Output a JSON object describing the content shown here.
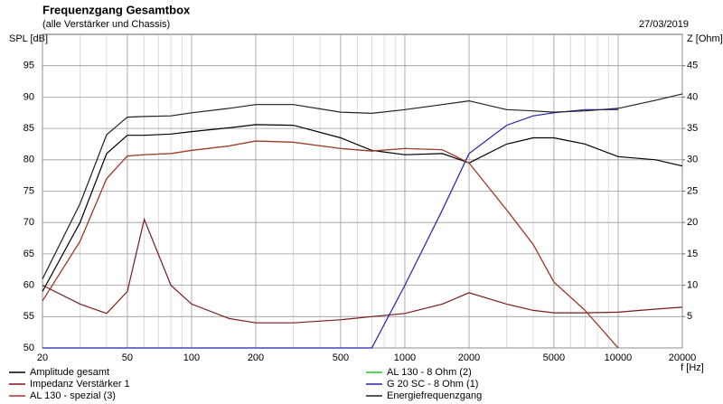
{
  "chart_data": {
    "type": "line",
    "title": "Frequenzgang Gesamtbox",
    "subtitle": "(alle Verstärker und Chassis)",
    "date": "27/03/2019",
    "ylabel": "SPL [dB]",
    "y2label": "Z [Ohm]",
    "xlabel": "f [Hz]",
    "xscale": "log",
    "grid": true,
    "legend": "bottom",
    "xlim": [
      20,
      20000
    ],
    "xticks": [
      20,
      50,
      100,
      200,
      500,
      1000,
      2000,
      5000,
      10000,
      20000
    ],
    "xminorticks": [
      30,
      40,
      60,
      70,
      80,
      90,
      300,
      400,
      600,
      700,
      800,
      900,
      3000,
      4000,
      6000,
      7000,
      8000,
      9000
    ],
    "ylim": [
      50,
      100
    ],
    "yticks": [
      50,
      55,
      60,
      65,
      70,
      75,
      80,
      85,
      90,
      95
    ],
    "y2lim": [
      0,
      50
    ],
    "y2ticks": [
      5,
      10,
      15,
      20,
      25,
      30,
      35,
      40,
      45
    ],
    "x": [
      20,
      30,
      40,
      50,
      60,
      80,
      100,
      150,
      200,
      300,
      500,
      700,
      1000,
      1500,
      2000,
      3000,
      4000,
      5000,
      7000,
      10000,
      15000,
      20000
    ],
    "series": [
      {
        "name": "Amplitude gesamt",
        "color": "#000000",
        "values": [
          59,
          70,
          81,
          83.9,
          83.9,
          84.1,
          84.5,
          85.1,
          85.6,
          85.5,
          83.5,
          81.5,
          80.8,
          81,
          79.5,
          82.5,
          83.5,
          83.5,
          82.5,
          80.5,
          80,
          79
        ]
      },
      {
        "name": "AL 130 - 8 Ohm (2)",
        "color": "#22cc22",
        "values": [
          57.5,
          67,
          77,
          80.6,
          80.8,
          81,
          81.5,
          82.2,
          83,
          82.8,
          81.8,
          81.4,
          81.8,
          81.6,
          79.5,
          72,
          66.5,
          60.5,
          56,
          50,
          null,
          null
        ]
      },
      {
        "name": "Impedanz Verstärker 1",
        "color": "#7a1a1a",
        "axis": "y2",
        "values": [
          10,
          7,
          5.5,
          9,
          20.5,
          10,
          7,
          4.7,
          4,
          4,
          4.5,
          5,
          5.5,
          7,
          8.8,
          7,
          6,
          5.6,
          5.6,
          5.7,
          6.2,
          6.5
        ]
      },
      {
        "name": "G 20 SC - 8 Ohm (1)",
        "color": "#2222aa",
        "values": [
          50,
          50,
          50,
          50,
          50,
          50,
          50,
          50,
          50,
          50,
          50,
          50,
          60,
          72,
          81,
          85.5,
          87,
          87.5,
          88,
          88,
          null,
          null
        ]
      },
      {
        "name": "AL 130 - spezial (3)",
        "color": "#b03030",
        "values": [
          57.5,
          67,
          77,
          80.6,
          80.8,
          81,
          81.5,
          82.2,
          83,
          82.8,
          81.8,
          81.4,
          81.8,
          81.6,
          79.5,
          72,
          66.5,
          60.5,
          56,
          50,
          null,
          null
        ]
      },
      {
        "name": "Energiefrequenzgang",
        "color": "#222222",
        "values": [
          61,
          73,
          84,
          86.8,
          86.9,
          87,
          87.5,
          88.2,
          88.8,
          88.8,
          87.6,
          87.4,
          88,
          88.8,
          89.4,
          88,
          87.8,
          87.6,
          87.8,
          88.2,
          89.5,
          90.5
        ]
      }
    ]
  }
}
